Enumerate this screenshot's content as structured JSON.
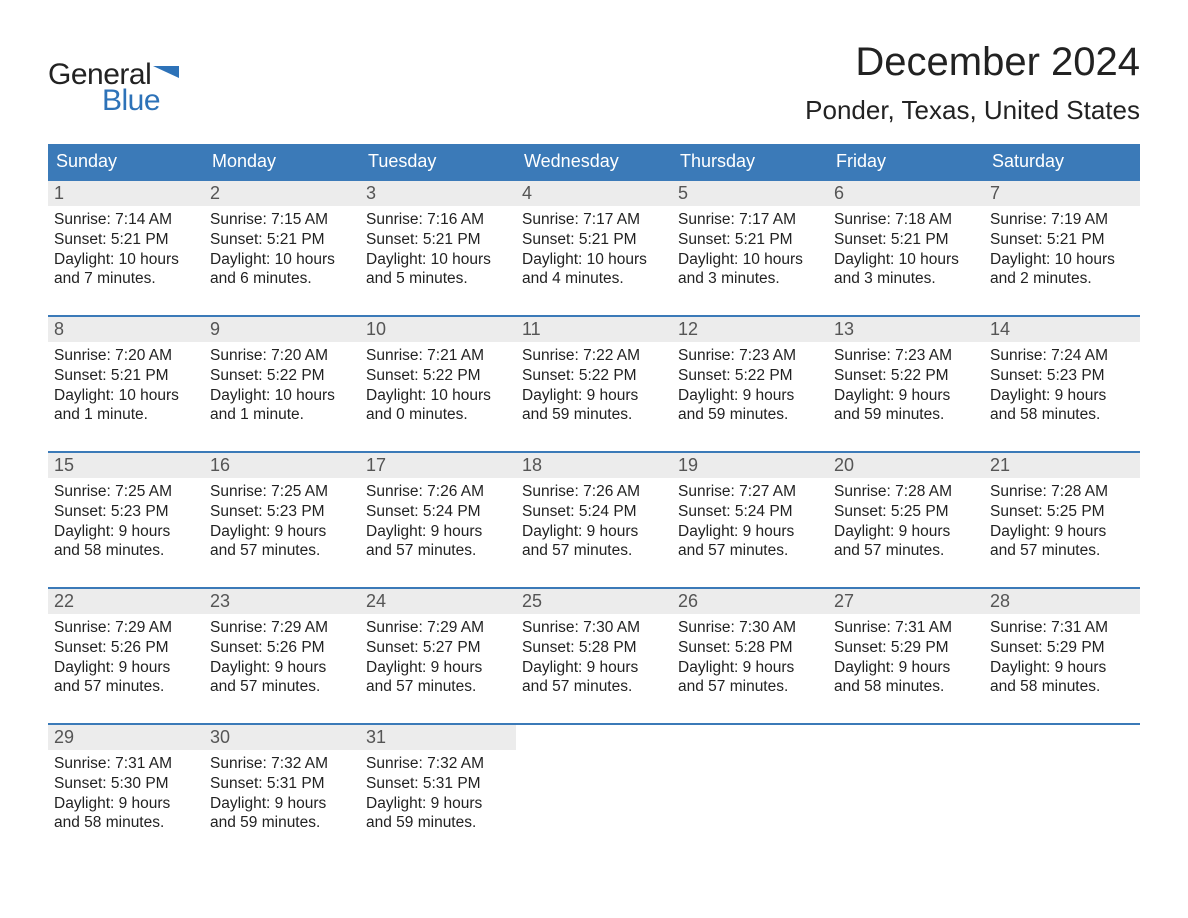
{
  "logo": {
    "text_general": "General",
    "text_blue": "Blue",
    "flag_color": "#2d72b8"
  },
  "title": "December 2024",
  "location": "Ponder, Texas, United States",
  "colors": {
    "header_bg": "#3b7ab8",
    "header_text": "#ffffff",
    "week_border": "#3b7ab8",
    "daynum_bg": "#ececec",
    "daynum_text": "#555555",
    "body_text": "#222222",
    "page_bg": "#ffffff",
    "logo_blue": "#2d72b8"
  },
  "weekdays": [
    "Sunday",
    "Monday",
    "Tuesday",
    "Wednesday",
    "Thursday",
    "Friday",
    "Saturday"
  ],
  "days": [
    {
      "n": "1",
      "sunrise": "Sunrise: 7:14 AM",
      "sunset": "Sunset: 5:21 PM",
      "day1": "Daylight: 10 hours",
      "day2": "and 7 minutes."
    },
    {
      "n": "2",
      "sunrise": "Sunrise: 7:15 AM",
      "sunset": "Sunset: 5:21 PM",
      "day1": "Daylight: 10 hours",
      "day2": "and 6 minutes."
    },
    {
      "n": "3",
      "sunrise": "Sunrise: 7:16 AM",
      "sunset": "Sunset: 5:21 PM",
      "day1": "Daylight: 10 hours",
      "day2": "and 5 minutes."
    },
    {
      "n": "4",
      "sunrise": "Sunrise: 7:17 AM",
      "sunset": "Sunset: 5:21 PM",
      "day1": "Daylight: 10 hours",
      "day2": "and 4 minutes."
    },
    {
      "n": "5",
      "sunrise": "Sunrise: 7:17 AM",
      "sunset": "Sunset: 5:21 PM",
      "day1": "Daylight: 10 hours",
      "day2": "and 3 minutes."
    },
    {
      "n": "6",
      "sunrise": "Sunrise: 7:18 AM",
      "sunset": "Sunset: 5:21 PM",
      "day1": "Daylight: 10 hours",
      "day2": "and 3 minutes."
    },
    {
      "n": "7",
      "sunrise": "Sunrise: 7:19 AM",
      "sunset": "Sunset: 5:21 PM",
      "day1": "Daylight: 10 hours",
      "day2": "and 2 minutes."
    },
    {
      "n": "8",
      "sunrise": "Sunrise: 7:20 AM",
      "sunset": "Sunset: 5:21 PM",
      "day1": "Daylight: 10 hours",
      "day2": "and 1 minute."
    },
    {
      "n": "9",
      "sunrise": "Sunrise: 7:20 AM",
      "sunset": "Sunset: 5:22 PM",
      "day1": "Daylight: 10 hours",
      "day2": "and 1 minute."
    },
    {
      "n": "10",
      "sunrise": "Sunrise: 7:21 AM",
      "sunset": "Sunset: 5:22 PM",
      "day1": "Daylight: 10 hours",
      "day2": "and 0 minutes."
    },
    {
      "n": "11",
      "sunrise": "Sunrise: 7:22 AM",
      "sunset": "Sunset: 5:22 PM",
      "day1": "Daylight: 9 hours",
      "day2": "and 59 minutes."
    },
    {
      "n": "12",
      "sunrise": "Sunrise: 7:23 AM",
      "sunset": "Sunset: 5:22 PM",
      "day1": "Daylight: 9 hours",
      "day2": "and 59 minutes."
    },
    {
      "n": "13",
      "sunrise": "Sunrise: 7:23 AM",
      "sunset": "Sunset: 5:22 PM",
      "day1": "Daylight: 9 hours",
      "day2": "and 59 minutes."
    },
    {
      "n": "14",
      "sunrise": "Sunrise: 7:24 AM",
      "sunset": "Sunset: 5:23 PM",
      "day1": "Daylight: 9 hours",
      "day2": "and 58 minutes."
    },
    {
      "n": "15",
      "sunrise": "Sunrise: 7:25 AM",
      "sunset": "Sunset: 5:23 PM",
      "day1": "Daylight: 9 hours",
      "day2": "and 58 minutes."
    },
    {
      "n": "16",
      "sunrise": "Sunrise: 7:25 AM",
      "sunset": "Sunset: 5:23 PM",
      "day1": "Daylight: 9 hours",
      "day2": "and 57 minutes."
    },
    {
      "n": "17",
      "sunrise": "Sunrise: 7:26 AM",
      "sunset": "Sunset: 5:24 PM",
      "day1": "Daylight: 9 hours",
      "day2": "and 57 minutes."
    },
    {
      "n": "18",
      "sunrise": "Sunrise: 7:26 AM",
      "sunset": "Sunset: 5:24 PM",
      "day1": "Daylight: 9 hours",
      "day2": "and 57 minutes."
    },
    {
      "n": "19",
      "sunrise": "Sunrise: 7:27 AM",
      "sunset": "Sunset: 5:24 PM",
      "day1": "Daylight: 9 hours",
      "day2": "and 57 minutes."
    },
    {
      "n": "20",
      "sunrise": "Sunrise: 7:28 AM",
      "sunset": "Sunset: 5:25 PM",
      "day1": "Daylight: 9 hours",
      "day2": "and 57 minutes."
    },
    {
      "n": "21",
      "sunrise": "Sunrise: 7:28 AM",
      "sunset": "Sunset: 5:25 PM",
      "day1": "Daylight: 9 hours",
      "day2": "and 57 minutes."
    },
    {
      "n": "22",
      "sunrise": "Sunrise: 7:29 AM",
      "sunset": "Sunset: 5:26 PM",
      "day1": "Daylight: 9 hours",
      "day2": "and 57 minutes."
    },
    {
      "n": "23",
      "sunrise": "Sunrise: 7:29 AM",
      "sunset": "Sunset: 5:26 PM",
      "day1": "Daylight: 9 hours",
      "day2": "and 57 minutes."
    },
    {
      "n": "24",
      "sunrise": "Sunrise: 7:29 AM",
      "sunset": "Sunset: 5:27 PM",
      "day1": "Daylight: 9 hours",
      "day2": "and 57 minutes."
    },
    {
      "n": "25",
      "sunrise": "Sunrise: 7:30 AM",
      "sunset": "Sunset: 5:28 PM",
      "day1": "Daylight: 9 hours",
      "day2": "and 57 minutes."
    },
    {
      "n": "26",
      "sunrise": "Sunrise: 7:30 AM",
      "sunset": "Sunset: 5:28 PM",
      "day1": "Daylight: 9 hours",
      "day2": "and 57 minutes."
    },
    {
      "n": "27",
      "sunrise": "Sunrise: 7:31 AM",
      "sunset": "Sunset: 5:29 PM",
      "day1": "Daylight: 9 hours",
      "day2": "and 58 minutes."
    },
    {
      "n": "28",
      "sunrise": "Sunrise: 7:31 AM",
      "sunset": "Sunset: 5:29 PM",
      "day1": "Daylight: 9 hours",
      "day2": "and 58 minutes."
    },
    {
      "n": "29",
      "sunrise": "Sunrise: 7:31 AM",
      "sunset": "Sunset: 5:30 PM",
      "day1": "Daylight: 9 hours",
      "day2": "and 58 minutes."
    },
    {
      "n": "30",
      "sunrise": "Sunrise: 7:32 AM",
      "sunset": "Sunset: 5:31 PM",
      "day1": "Daylight: 9 hours",
      "day2": "and 59 minutes."
    },
    {
      "n": "31",
      "sunrise": "Sunrise: 7:32 AM",
      "sunset": "Sunset: 5:31 PM",
      "day1": "Daylight: 9 hours",
      "day2": "and 59 minutes."
    }
  ]
}
